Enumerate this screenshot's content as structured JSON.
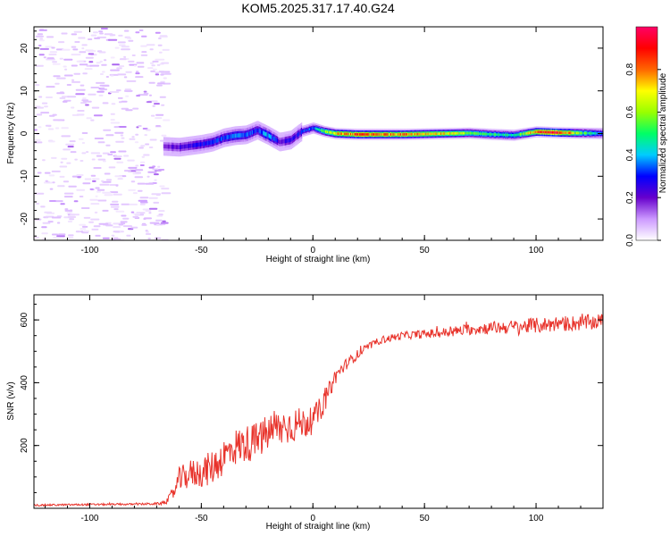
{
  "title": "KOM5.2025.317.17.40.G24",
  "chart_data": [
    {
      "type": "heatmap",
      "title": "KOM5.2025.317.17.40.G24",
      "xlabel": "Height of straight line (km)",
      "ylabel": "Frequency (Hz)",
      "xlim": [
        -125,
        130
      ],
      "ylim": [
        -25,
        25
      ],
      "xticks": [
        -100,
        -50,
        0,
        50,
        100
      ],
      "yticks": [
        -20,
        -10,
        0,
        10,
        20
      ],
      "noise_region_x": [
        -125,
        -67
      ],
      "signal_track": {
        "x": [
          -67,
          -60,
          -50,
          -45,
          -40,
          -35,
          -30,
          -25,
          -20,
          -15,
          -10,
          -5,
          0,
          5,
          10,
          20,
          30,
          40,
          50,
          60,
          70,
          80,
          90,
          100,
          110,
          120,
          130
        ],
        "frequency": [
          -3,
          -3.2,
          -2.5,
          -2,
          -1,
          -0.5,
          -0.3,
          0.8,
          -0.5,
          -2,
          -1.5,
          0.5,
          1.3,
          0.5,
          0,
          -0.2,
          -0.2,
          -0.2,
          -0.1,
          0,
          0.1,
          -0.2,
          -0.4,
          0.4,
          0.2,
          0.1,
          0
        ],
        "amplitude": [
          0.18,
          0.22,
          0.28,
          0.3,
          0.32,
          0.38,
          0.35,
          0.3,
          0.4,
          0.22,
          0.25,
          0.3,
          0.35,
          0.55,
          0.7,
          0.85,
          0.8,
          0.82,
          0.75,
          0.7,
          0.55,
          0.5,
          0.45,
          0.8,
          0.92,
          0.55,
          0.35
        ]
      },
      "colorbar": {
        "label": "Normalized spectral amplitude",
        "range": [
          0,
          1
        ],
        "ticks": [
          "0.0",
          "0.2",
          "0.4",
          "0.6",
          "0.8"
        ],
        "tick_values": [
          0,
          0.2,
          0.4,
          0.6,
          0.8
        ],
        "colormap": [
          "#ffffff",
          "#cc99ff",
          "#6600cc",
          "#0000ff",
          "#00ccff",
          "#00ff66",
          "#99ff00",
          "#ffff00",
          "#ff6600",
          "#ff0000",
          "#ff0066"
        ]
      }
    },
    {
      "type": "line",
      "xlabel": "Height of straight line (km)",
      "ylabel": "SNR (v/v)",
      "xlim": [
        -125,
        130
      ],
      "ylim": [
        0,
        680
      ],
      "xticks": [
        -100,
        -50,
        0,
        50,
        100
      ],
      "yticks": [
        200,
        400,
        600
      ],
      "color": "#e8332b",
      "series": [
        {
          "name": "SNR",
          "x": [
            -125,
            -100,
            -80,
            -68,
            -65,
            -62,
            -60,
            -55,
            -50,
            -45,
            -40,
            -35,
            -30,
            -25,
            -20,
            -15,
            -10,
            -5,
            0,
            5,
            10,
            15,
            20,
            25,
            30,
            40,
            50,
            60,
            70,
            80,
            90,
            100,
            110,
            120,
            130
          ],
          "baseline": [
            10,
            12,
            13,
            15,
            25,
            55,
            90,
            110,
            115,
            130,
            165,
            195,
            205,
            215,
            240,
            255,
            265,
            270,
            280,
            335,
            420,
            460,
            490,
            515,
            535,
            550,
            555,
            560,
            570,
            575,
            578,
            582,
            588,
            590,
            595
          ],
          "noise_amplitude": [
            3,
            3,
            3,
            4,
            10,
            25,
            40,
            45,
            50,
            55,
            60,
            60,
            60,
            60,
            60,
            60,
            60,
            50,
            45,
            35,
            25,
            18,
            15,
            12,
            12,
            12,
            14,
            16,
            18,
            20,
            22,
            25,
            25,
            25,
            25
          ]
        }
      ]
    }
  ]
}
